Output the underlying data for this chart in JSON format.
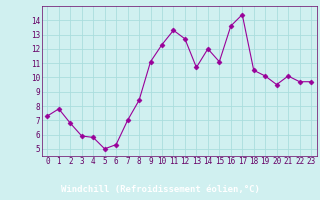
{
  "x": [
    0,
    1,
    2,
    3,
    4,
    5,
    6,
    7,
    8,
    9,
    10,
    11,
    12,
    13,
    14,
    15,
    16,
    17,
    18,
    19,
    20,
    21,
    22,
    23
  ],
  "y": [
    7.3,
    7.8,
    6.8,
    5.9,
    5.8,
    5.0,
    5.3,
    7.0,
    8.4,
    11.1,
    12.3,
    13.3,
    12.7,
    10.7,
    12.0,
    11.1,
    13.6,
    14.4,
    10.5,
    10.1,
    9.5,
    10.1,
    9.7,
    9.7
  ],
  "line_color": "#990099",
  "marker": "D",
  "marker_size": 2.5,
  "bg_color": "#d0f0f0",
  "grid_color": "#aadddd",
  "xlabel": "Windchill (Refroidissement éolien,°C)",
  "xlabel_color": "#ffffff",
  "xlabel_bg": "#660066",
  "ylim": [
    4.5,
    15
  ],
  "xlim": [
    -0.5,
    23.5
  ],
  "yticks": [
    5,
    6,
    7,
    8,
    9,
    10,
    11,
    12,
    13,
    14
  ],
  "xticks": [
    0,
    1,
    2,
    3,
    4,
    5,
    6,
    7,
    8,
    9,
    10,
    11,
    12,
    13,
    14,
    15,
    16,
    17,
    18,
    19,
    20,
    21,
    22,
    23
  ],
  "tick_label_color": "#660066",
  "tick_label_fontsize": 5.5,
  "xlabel_fontsize": 6.5,
  "spine_color": "#660066"
}
